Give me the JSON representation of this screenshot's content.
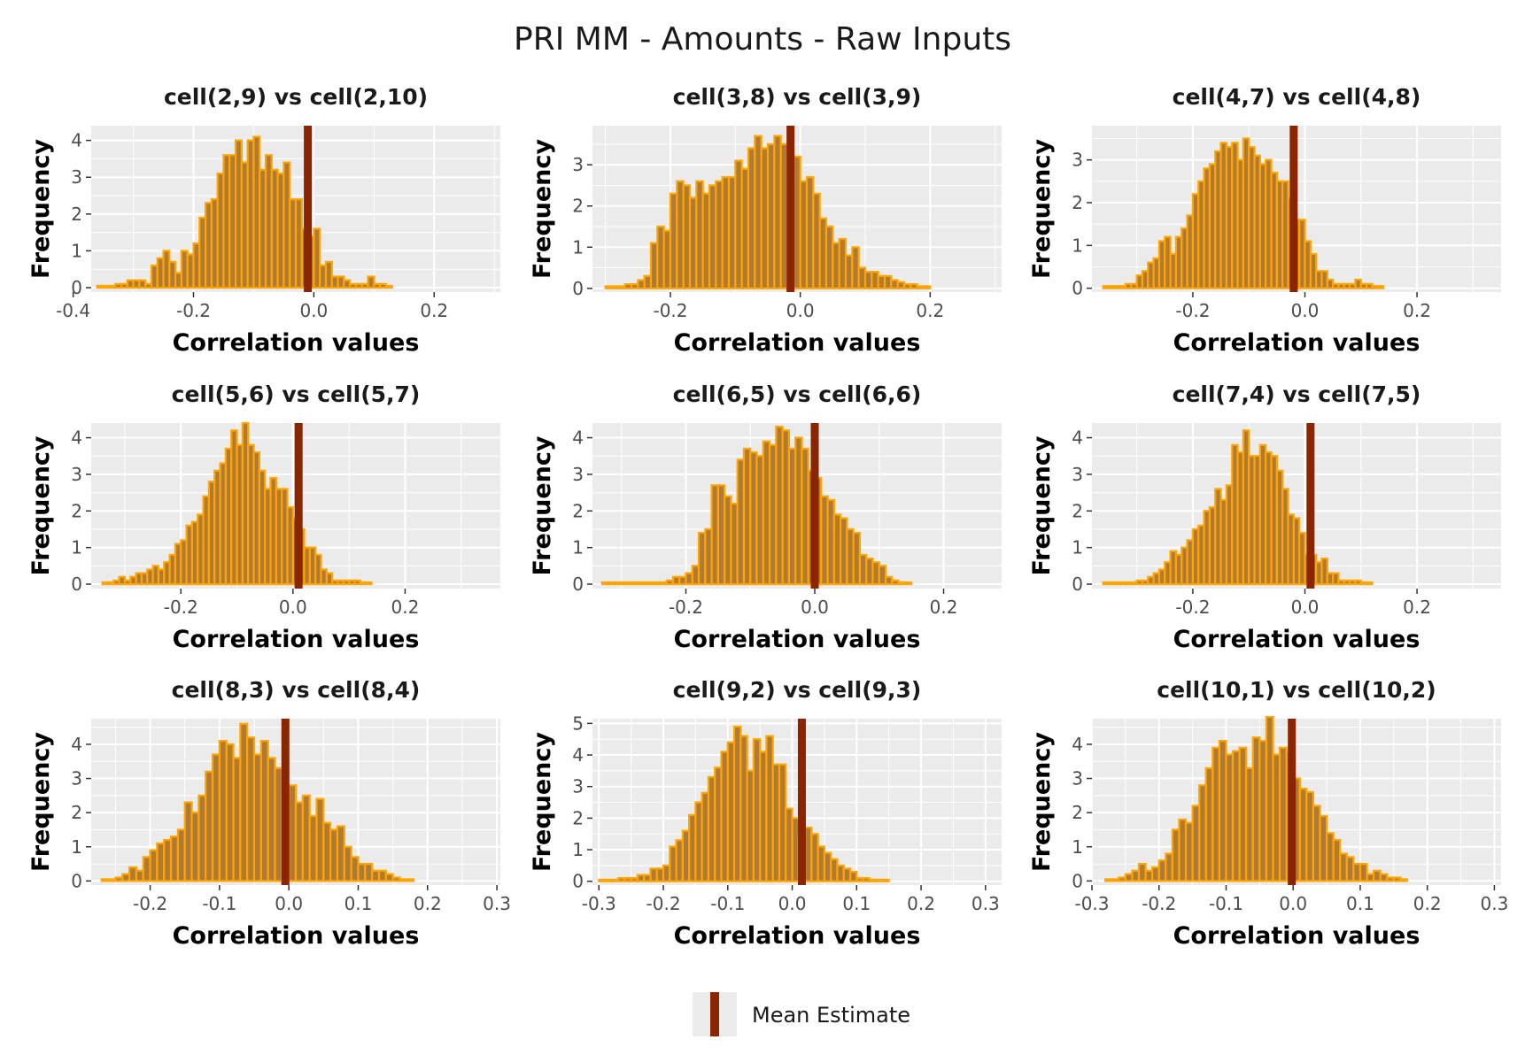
{
  "figure": {
    "title": "PRI MM - Amounts - Raw Inputs",
    "legend": {
      "label": "Mean Estimate",
      "color": "#8B2500",
      "position": "bottom"
    }
  },
  "colors": {
    "panel_bg": "#EBEBEB",
    "grid": "#FFFFFF",
    "bar_fill": "#B07A35",
    "bar_outline": "#FFA500",
    "mean_line": "#8B2500"
  },
  "chart_data": [
    {
      "type": "bar",
      "title": "cell(2,9) vs cell(2,10)",
      "xlabel": "Correlation values",
      "ylabel": "Frequency",
      "xlim": [
        -0.37,
        0.31
      ],
      "ylim": [
        -0.12,
        4.4
      ],
      "xticks": [
        -0.4,
        -0.2,
        0.0,
        0.2
      ],
      "yticks": [
        0,
        1,
        2,
        3,
        4
      ],
      "xtick_labels": [
        "-0.4",
        "-0.2",
        "0.0",
        "0.2"
      ],
      "ytick_labels": [
        "0",
        "1",
        "2",
        "3",
        "4"
      ],
      "bin_start": -0.36,
      "bin_width": 0.01,
      "values": [
        0.05,
        0.05,
        0.05,
        0.1,
        0.1,
        0.2,
        0.2,
        0.2,
        0.1,
        0.6,
        0.8,
        1.0,
        0.7,
        0.4,
        1.0,
        0.9,
        1.2,
        1.9,
        2.3,
        2.4,
        3.1,
        3.6,
        3.6,
        4.0,
        3.4,
        4.0,
        4.1,
        3.2,
        3.6,
        3.2,
        3.1,
        3.4,
        2.4,
        2.4,
        1.6,
        1.4,
        1.6,
        0.6,
        0.7,
        0.3,
        0.3,
        0.2,
        0.1,
        0.1,
        0.1,
        0.3,
        0.1,
        0.1,
        0.05
      ],
      "mean": -0.01
    },
    {
      "type": "bar",
      "title": "cell(3,8) vs cell(3,9)",
      "xlabel": "Correlation values",
      "ylabel": "Frequency",
      "xlim": [
        -0.32,
        0.31
      ],
      "ylim": [
        -0.09,
        3.95
      ],
      "xticks": [
        -0.2,
        0.0,
        0.2
      ],
      "yticks": [
        0,
        1,
        2,
        3
      ],
      "xtick_labels": [
        "-0.2",
        "0.0",
        "0.2"
      ],
      "ytick_labels": [
        "0",
        "1",
        "2",
        "3"
      ],
      "bin_start": -0.3,
      "bin_width": 0.01,
      "values": [
        0.05,
        0.05,
        0.05,
        0.1,
        0.1,
        0.2,
        0.3,
        1.1,
        1.5,
        1.4,
        2.3,
        2.6,
        2.5,
        2.2,
        2.6,
        2.3,
        2.5,
        2.6,
        2.7,
        2.7,
        3.1,
        2.9,
        3.4,
        3.7,
        3.4,
        3.5,
        3.7,
        3.5,
        3.0,
        3.2,
        2.6,
        2.7,
        2.3,
        1.7,
        1.5,
        1.1,
        1.2,
        0.8,
        1.0,
        0.5,
        0.4,
        0.4,
        0.3,
        0.3,
        0.2,
        0.15,
        0.1,
        0.1,
        0.05,
        0.05
      ],
      "mean": -0.015
    },
    {
      "type": "bar",
      "title": "cell(4,7) vs cell(4,8)",
      "xlabel": "Correlation values",
      "ylabel": "Frequency",
      "xlim": [
        -0.38,
        0.35
      ],
      "ylim": [
        -0.09,
        3.8
      ],
      "xticks": [
        -0.2,
        0.0,
        0.2
      ],
      "yticks": [
        0,
        1,
        2,
        3
      ],
      "xtick_labels": [
        "-0.2",
        "0.0",
        "0.2"
      ],
      "ytick_labels": [
        "0",
        "1",
        "2",
        "3"
      ],
      "bin_start": -0.36,
      "bin_width": 0.01,
      "values": [
        0.05,
        0.05,
        0.05,
        0.05,
        0.1,
        0.1,
        0.3,
        0.4,
        0.6,
        0.7,
        1.1,
        1.2,
        0.8,
        1.2,
        1.4,
        1.7,
        2.2,
        2.5,
        2.8,
        2.9,
        3.2,
        3.4,
        3.3,
        3.4,
        3.0,
        3.5,
        3.3,
        3.1,
        2.9,
        3.0,
        2.7,
        2.5,
        2.5,
        2.1,
        1.6,
        1.6,
        1.1,
        0.8,
        0.4,
        0.4,
        0.2,
        0.1,
        0.1,
        0.1,
        0.1,
        0.2,
        0.1,
        0.1,
        0.05,
        0.05
      ],
      "mean": -0.02
    },
    {
      "type": "bar",
      "title": "cell(5,6) vs cell(5,7)",
      "xlabel": "Correlation values",
      "ylabel": "Frequency",
      "xlim": [
        -0.36,
        0.37
      ],
      "ylim": [
        -0.12,
        4.4
      ],
      "xticks": [
        -0.2,
        0.0,
        0.2
      ],
      "yticks": [
        0,
        1,
        2,
        3,
        4
      ],
      "xtick_labels": [
        "-0.2",
        "0.0",
        "0.2"
      ],
      "ytick_labels": [
        "0",
        "1",
        "2",
        "3",
        "4"
      ],
      "bin_start": -0.34,
      "bin_width": 0.01,
      "values": [
        0.05,
        0.05,
        0.1,
        0.2,
        0.1,
        0.2,
        0.3,
        0.3,
        0.4,
        0.5,
        0.4,
        0.6,
        0.8,
        1.1,
        1.2,
        1.6,
        1.7,
        1.9,
        2.4,
        2.8,
        3.1,
        3.3,
        3.7,
        4.2,
        3.8,
        4.4,
        3.8,
        3.6,
        3.1,
        2.6,
        2.9,
        2.6,
        2.6,
        2.1,
        1.8,
        1.5,
        1.0,
        1.0,
        0.8,
        0.4,
        0.3,
        0.1,
        0.1,
        0.1,
        0.1,
        0.1,
        0.05,
        0.05
      ],
      "mean": 0.01
    },
    {
      "type": "bar",
      "title": "cell(6,5) vs cell(6,6)",
      "xlabel": "Correlation values",
      "ylabel": "Frequency",
      "xlim": [
        -0.345,
        0.29
      ],
      "ylim": [
        -0.12,
        4.4
      ],
      "xticks": [
        -0.2,
        0.0,
        0.2
      ],
      "yticks": [
        0,
        1,
        2,
        3,
        4
      ],
      "xtick_labels": [
        "-0.2",
        "0.0",
        "0.2"
      ],
      "ytick_labels": [
        "0",
        "1",
        "2",
        "3",
        "4"
      ],
      "bin_start": -0.33,
      "bin_width": 0.01,
      "values": [
        0.05,
        0.05,
        0.05,
        0.05,
        0.05,
        0.05,
        0.05,
        0.05,
        0.05,
        0.05,
        0.1,
        0.2,
        0.2,
        0.3,
        0.5,
        1.4,
        1.5,
        2.7,
        2.7,
        2.4,
        2.2,
        3.4,
        3.7,
        3.6,
        3.5,
        3.9,
        3.8,
        4.3,
        4.2,
        3.7,
        4.0,
        3.7,
        3.1,
        2.9,
        2.4,
        2.3,
        1.9,
        1.8,
        1.5,
        1.4,
        0.8,
        0.7,
        0.6,
        0.5,
        0.2,
        0.1,
        0.05,
        0.05
      ],
      "mean": 0.0
    },
    {
      "type": "bar",
      "title": "cell(7,4) vs cell(7,5)",
      "xlabel": "Correlation values",
      "ylabel": "Frequency",
      "xlim": [
        -0.38,
        0.35
      ],
      "ylim": [
        -0.12,
        4.4
      ],
      "xticks": [
        -0.2,
        0.0,
        0.2
      ],
      "yticks": [
        0,
        1,
        2,
        3,
        4
      ],
      "xtick_labels": [
        "-0.2",
        "0.0",
        "0.2"
      ],
      "ytick_labels": [
        "0",
        "1",
        "2",
        "3",
        "4"
      ],
      "bin_start": -0.36,
      "bin_width": 0.01,
      "values": [
        0.05,
        0.05,
        0.05,
        0.05,
        0.05,
        0.05,
        0.1,
        0.1,
        0.2,
        0.3,
        0.4,
        0.6,
        0.9,
        0.8,
        1.0,
        1.2,
        1.5,
        1.6,
        2.0,
        2.1,
        2.6,
        2.3,
        2.7,
        3.8,
        3.6,
        4.2,
        3.5,
        3.5,
        3.8,
        3.6,
        3.5,
        3.1,
        2.6,
        1.9,
        1.8,
        1.4,
        0.8,
        0.8,
        0.6,
        0.7,
        0.3,
        0.3,
        0.1,
        0.1,
        0.1,
        0.1,
        0.05,
        0.05
      ],
      "mean": 0.01
    },
    {
      "type": "bar",
      "title": "cell(8,3) vs cell(8,4)",
      "xlabel": "Correlation values",
      "ylabel": "Frequency",
      "xlim": [
        -0.285,
        0.305
      ],
      "ylim": [
        -0.12,
        4.75
      ],
      "xticks": [
        -0.2,
        -0.1,
        0.0,
        0.1,
        0.2,
        0.3
      ],
      "yticks": [
        0,
        1,
        2,
        3,
        4
      ],
      "xtick_labels": [
        "-0.2",
        "-0.1",
        "0.0",
        "0.1",
        "0.2",
        "0.3"
      ],
      "ytick_labels": [
        "0",
        "1",
        "2",
        "3",
        "4"
      ],
      "bin_start": -0.27,
      "bin_width": 0.01,
      "values": [
        0.05,
        0.05,
        0.1,
        0.2,
        0.4,
        0.3,
        0.7,
        0.9,
        1.1,
        1.2,
        1.3,
        1.5,
        2.3,
        2.0,
        2.5,
        3.2,
        3.7,
        4.1,
        4.0,
        3.6,
        4.6,
        4.2,
        3.7,
        4.1,
        3.6,
        3.3,
        2.6,
        2.8,
        2.3,
        2.5,
        1.9,
        2.4,
        1.7,
        1.5,
        1.6,
        1.0,
        0.7,
        0.5,
        0.5,
        0.3,
        0.3,
        0.2,
        0.1,
        0.05,
        0.05
      ],
      "mean": -0.005
    },
    {
      "type": "bar",
      "title": "cell(9,2) vs cell(9,3)",
      "xlabel": "Correlation values",
      "ylabel": "Frequency",
      "xlim": [
        -0.31,
        0.325
      ],
      "ylim": [
        -0.12,
        5.15
      ],
      "xticks": [
        -0.3,
        -0.2,
        -0.1,
        0.0,
        0.1,
        0.2,
        0.3
      ],
      "yticks": [
        0,
        1,
        2,
        3,
        4,
        5
      ],
      "xtick_labels": [
        "-0.3",
        "-0.2",
        "-0.1",
        "0.0",
        "0.1",
        "0.2",
        "0.3"
      ],
      "ytick_labels": [
        "0",
        "1",
        "2",
        "3",
        "4",
        "5"
      ],
      "bin_start": -0.3,
      "bin_width": 0.01,
      "values": [
        0.05,
        0.05,
        0.05,
        0.1,
        0.1,
        0.1,
        0.2,
        0.2,
        0.4,
        0.4,
        0.5,
        1.1,
        1.3,
        1.6,
        2.1,
        2.5,
        2.8,
        3.3,
        3.6,
        4.1,
        4.4,
        4.9,
        4.6,
        3.5,
        4.5,
        4.1,
        4.6,
        3.7,
        3.7,
        2.3,
        2.0,
        1.4,
        1.7,
        1.5,
        1.1,
        0.9,
        0.7,
        0.5,
        0.4,
        0.3,
        0.1,
        0.1,
        0.05,
        0.05,
        0.05
      ],
      "mean": 0.015
    },
    {
      "type": "bar",
      "title": "cell(10,1) vs cell(10,2)",
      "xlabel": "Correlation values",
      "ylabel": "Frequency",
      "xlim": [
        -0.3,
        0.31
      ],
      "ylim": [
        -0.12,
        4.75
      ],
      "xticks": [
        -0.3,
        -0.2,
        -0.1,
        0.0,
        0.1,
        0.2,
        0.3
      ],
      "yticks": [
        0,
        1,
        2,
        3,
        4
      ],
      "xtick_labels": [
        "-0.3",
        "-0.2",
        "-0.1",
        "0.0",
        "0.1",
        "0.2",
        "0.3"
      ],
      "ytick_labels": [
        "0",
        "1",
        "2",
        "3",
        "4"
      ],
      "bin_start": -0.28,
      "bin_width": 0.01,
      "values": [
        0.05,
        0.05,
        0.1,
        0.2,
        0.3,
        0.5,
        0.3,
        0.4,
        0.6,
        0.8,
        1.5,
        1.8,
        1.7,
        2.2,
        2.8,
        3.3,
        3.9,
        4.1,
        3.7,
        3.8,
        3.9,
        3.3,
        4.2,
        4.1,
        4.8,
        3.7,
        3.9,
        3.8,
        3.0,
        2.7,
        2.6,
        2.2,
        1.9,
        1.4,
        1.2,
        0.8,
        0.7,
        0.5,
        0.5,
        0.2,
        0.3,
        0.2,
        0.1,
        0.1,
        0.05
      ],
      "mean": -0.002
    }
  ]
}
